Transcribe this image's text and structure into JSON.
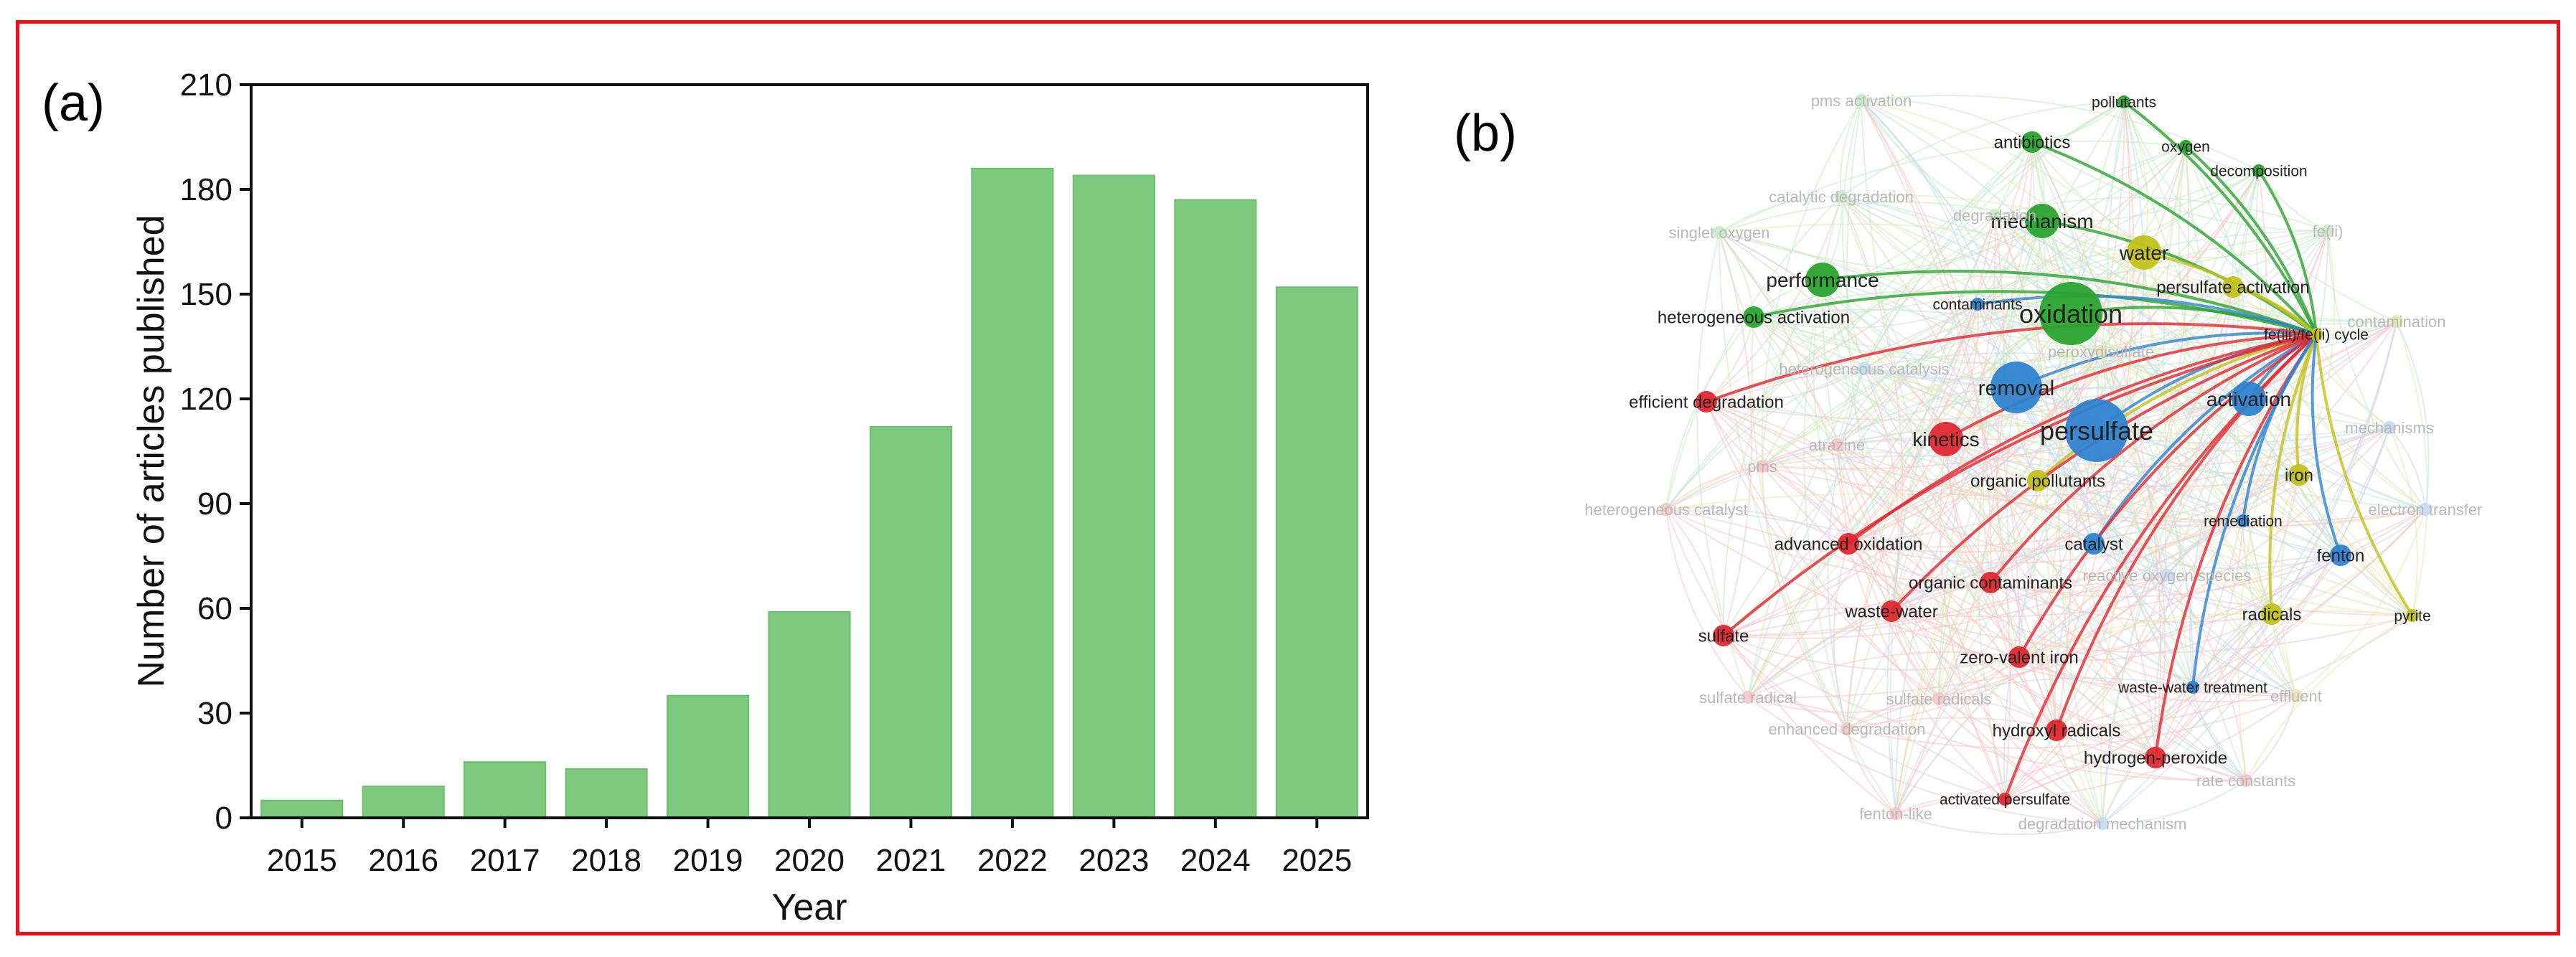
{
  "frame_color": "#e8141b",
  "panel_a": {
    "label": "(a)",
    "chart_data": {
      "type": "bar",
      "categories": [
        "2015",
        "2016",
        "2017",
        "2018",
        "2019",
        "2020",
        "2021",
        "2022",
        "2023",
        "2024",
        "2025"
      ],
      "values": [
        5,
        9,
        16,
        14,
        35,
        59,
        112,
        186,
        184,
        177,
        152
      ],
      "xlabel": "Year",
      "ylabel": "Number of articles published",
      "ylim": [
        0,
        210
      ],
      "yticks": [
        0,
        30,
        60,
        90,
        120,
        150,
        180,
        210
      ],
      "bar_color": "#7dca7f",
      "grid": false
    }
  },
  "panel_b": {
    "label": "(b)",
    "cluster_colors": {
      "red": "#e0282f",
      "green": "#2aa32f",
      "blue": "#2f83d0",
      "yellow": "#c2c21a"
    },
    "hub_node": "fe(iii)/fe(ii) cycle",
    "nodes": [
      {
        "label": "oxidation",
        "cluster": "green",
        "weight": 5,
        "faint": false
      },
      {
        "label": "persulfate",
        "cluster": "blue",
        "weight": 5,
        "faint": false
      },
      {
        "label": "removal",
        "cluster": "blue",
        "weight": 4,
        "faint": false
      },
      {
        "label": "performance",
        "cluster": "green",
        "weight": 3,
        "faint": false
      },
      {
        "label": "mechanism",
        "cluster": "green",
        "weight": 3,
        "faint": false
      },
      {
        "label": "water",
        "cluster": "yellow",
        "weight": 3,
        "faint": false
      },
      {
        "label": "activation",
        "cluster": "blue",
        "weight": 3,
        "faint": false
      },
      {
        "label": "kinetics",
        "cluster": "red",
        "weight": 3,
        "faint": false
      },
      {
        "label": "catalyst",
        "cluster": "blue",
        "weight": 2,
        "faint": false
      },
      {
        "label": "organic pollutants",
        "cluster": "yellow",
        "weight": 2,
        "faint": false
      },
      {
        "label": "advanced oxidation",
        "cluster": "red",
        "weight": 2,
        "faint": false
      },
      {
        "label": "organic contaminants",
        "cluster": "red",
        "weight": 2,
        "faint": false
      },
      {
        "label": "waste-water",
        "cluster": "red",
        "weight": 2,
        "faint": false
      },
      {
        "label": "sulfate",
        "cluster": "red",
        "weight": 2,
        "faint": false
      },
      {
        "label": "zero-valent iron",
        "cluster": "red",
        "weight": 2,
        "faint": false
      },
      {
        "label": "hydroxyl radicals",
        "cluster": "red",
        "weight": 2,
        "faint": false
      },
      {
        "label": "hydrogen-peroxide",
        "cluster": "red",
        "weight": 2,
        "faint": false
      },
      {
        "label": "activated persulfate",
        "cluster": "red",
        "weight": 1,
        "faint": false
      },
      {
        "label": "efficient degradation",
        "cluster": "red",
        "weight": 2,
        "faint": false
      },
      {
        "label": "heterogeneous activation",
        "cluster": "green",
        "weight": 2,
        "faint": false
      },
      {
        "label": "antibiotics",
        "cluster": "green",
        "weight": 2,
        "faint": false
      },
      {
        "label": "pollutants",
        "cluster": "green",
        "weight": 1,
        "faint": false
      },
      {
        "label": "oxygen",
        "cluster": "green",
        "weight": 1,
        "faint": false
      },
      {
        "label": "decomposition",
        "cluster": "green",
        "weight": 1,
        "faint": false
      },
      {
        "label": "persulfate activation",
        "cluster": "yellow",
        "weight": 2,
        "faint": false
      },
      {
        "label": "fe(iii)/fe(ii) cycle",
        "cluster": "yellow",
        "weight": 1,
        "faint": false
      },
      {
        "label": "iron",
        "cluster": "yellow",
        "weight": 2,
        "faint": false
      },
      {
        "label": "radicals",
        "cluster": "yellow",
        "weight": 2,
        "faint": false
      },
      {
        "label": "pyrite",
        "cluster": "yellow",
        "weight": 1,
        "faint": false
      },
      {
        "label": "remediation",
        "cluster": "blue",
        "weight": 1,
        "faint": false
      },
      {
        "label": "fenton",
        "cluster": "blue",
        "weight": 2,
        "faint": false
      },
      {
        "label": "waste-water treatment",
        "cluster": "blue",
        "weight": 1,
        "faint": false
      },
      {
        "label": "contaminants",
        "cluster": "blue",
        "weight": 1,
        "faint": false
      },
      {
        "label": "pms activation",
        "cluster": "green",
        "weight": 1,
        "faint": true
      },
      {
        "label": "catalytic degradation",
        "cluster": "green",
        "weight": 1,
        "faint": true
      },
      {
        "label": "singlet oxygen",
        "cluster": "green",
        "weight": 1,
        "faint": true
      },
      {
        "label": "fe(ii)",
        "cluster": "green",
        "weight": 1,
        "faint": true
      },
      {
        "label": "heterogeneous catalysis",
        "cluster": "blue",
        "weight": 1,
        "faint": true
      },
      {
        "label": "peroxydisulfate",
        "cluster": "yellow",
        "weight": 1,
        "faint": true
      },
      {
        "label": "atrazine",
        "cluster": "red",
        "weight": 1,
        "faint": true
      },
      {
        "label": "pms",
        "cluster": "red",
        "weight": 1,
        "faint": true
      },
      {
        "label": "heterogeneous catalyst",
        "cluster": "red",
        "weight": 1,
        "faint": true
      },
      {
        "label": "sulfate radical",
        "cluster": "red",
        "weight": 1,
        "faint": true
      },
      {
        "label": "sulfate radicals",
        "cluster": "red",
        "weight": 1,
        "faint": true
      },
      {
        "label": "enhanced degradation",
        "cluster": "red",
        "weight": 1,
        "faint": true
      },
      {
        "label": "fenton-like",
        "cluster": "red",
        "weight": 1,
        "faint": true
      },
      {
        "label": "degradation mechanism",
        "cluster": "blue",
        "weight": 1,
        "faint": true
      },
      {
        "label": "rate constants",
        "cluster": "red",
        "weight": 1,
        "faint": true
      },
      {
        "label": "effluent",
        "cluster": "yellow",
        "weight": 1,
        "faint": true
      },
      {
        "label": "electron transfer",
        "cluster": "blue",
        "weight": 1,
        "faint": true
      },
      {
        "label": "mechanisms",
        "cluster": "blue",
        "weight": 1,
        "faint": true
      },
      {
        "label": "reactive oxygen species",
        "cluster": "blue",
        "weight": 1,
        "faint": true
      },
      {
        "label": "degradation",
        "cluster": "green",
        "weight": 1,
        "faint": true
      },
      {
        "label": "contamination",
        "cluster": "yellow",
        "weight": 1,
        "faint": true
      }
    ]
  }
}
